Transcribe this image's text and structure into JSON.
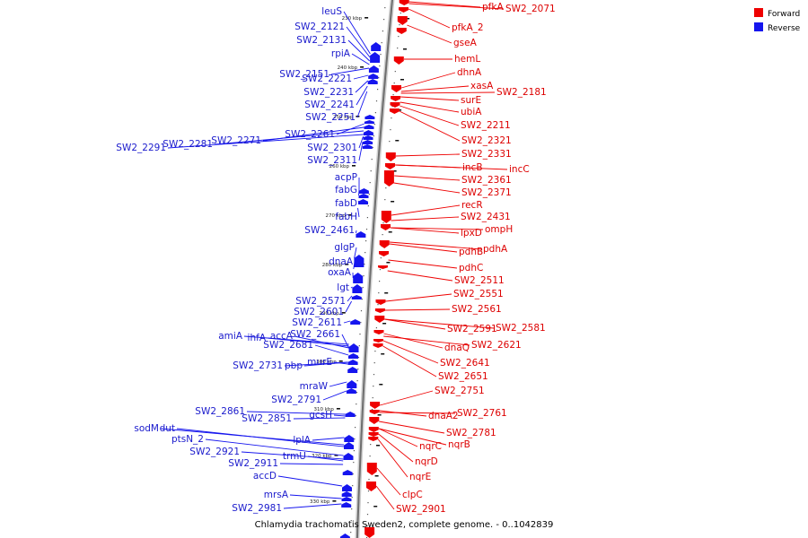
{
  "caption": "Chlamydia trachomatis Sweden2, complete genome. - 0..1042839",
  "legend": {
    "forward_label": "Forward",
    "reverse_label": "Reverse",
    "forward_color": "#ee0000",
    "reverse_color": "#1515ee"
  },
  "ticks": [
    "230 kbp",
    "240 kbp",
    "250 kbp",
    "260 kbp",
    "270 kbp",
    "280 kbp",
    "290 kbp",
    "300 kbp",
    "310 kbp",
    "320 kbp",
    "330 kbp"
  ],
  "forward_genes": [
    "pfkA",
    "SW2_2071",
    "pfkA_2",
    "gseA",
    "hemL",
    "dhnA",
    "xasA",
    "SW2_2181",
    "surE",
    "ubiA",
    "SW2_2211",
    "SW2_2321",
    "SW2_2331",
    "incB",
    "incC",
    "SW2_2361",
    "SW2_2371",
    "recR",
    "SW2_2431",
    "lpxD",
    "ompH",
    "pdhB",
    "pdhA",
    "pdhC",
    "SW2_2511",
    "SW2_2551",
    "SW2_2561",
    "SW2_2591",
    "SW2_2581",
    "dnaQ",
    "SW2_2621",
    "SW2_2641",
    "SW2_2651",
    "SW2_2751",
    "dnaA2",
    "SW2_2761",
    "SW2_2781",
    "nqrC",
    "nqrB",
    "nqrD",
    "nqrE",
    "clpC",
    "SW2_2901"
  ],
  "reverse_genes": [
    "leuS",
    "SW2_2121",
    "SW2_2131",
    "rpiA",
    "SW2_2151",
    "SW2_2221",
    "SW2_2231",
    "SW2_2241",
    "SW2_2251",
    "SW2_2261",
    "SW2_2271",
    "SW2_2281",
    "SW2_2291",
    "SW2_2301",
    "SW2_2311",
    "acpP",
    "fabG",
    "fabD",
    "fabH",
    "SW2_2461",
    "glgP",
    "dnaA",
    "oxaA",
    "lgt",
    "SW2_2571",
    "SW2_2601",
    "SW2_2611",
    "amiA",
    "ihfA",
    "accA",
    "SW2_2661",
    "SW2_2681",
    "SW2_2731",
    "pbp",
    "murE",
    "mraW",
    "SW2_2791",
    "SW2_2861",
    "gcsH",
    "SW2_2851",
    "lplA",
    "sodM",
    "dut",
    "ptsN_2",
    "SW2_2921",
    "trmU",
    "SW2_2911",
    "accD",
    "mrsA",
    "SW2_2981"
  ]
}
